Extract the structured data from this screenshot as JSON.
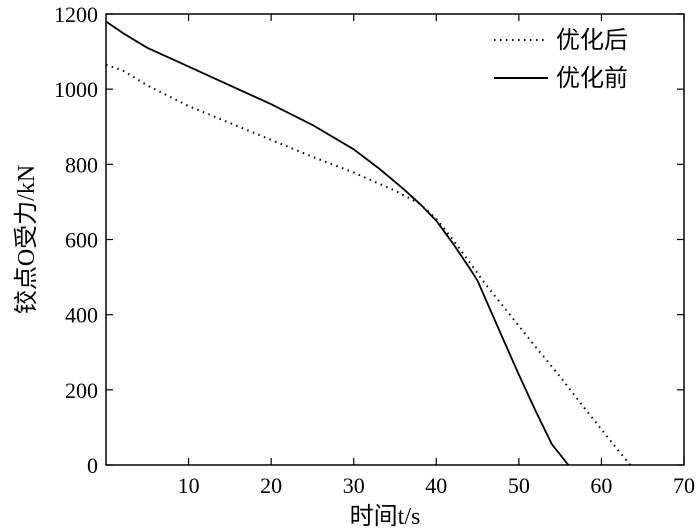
{
  "chart_data": {
    "type": "line",
    "title": "",
    "xlabel": "时间t/s",
    "ylabel": "铰点O受力/kN",
    "xlim": [
      0,
      70
    ],
    "ylim": [
      0,
      1200
    ],
    "xticks": [
      10,
      20,
      30,
      40,
      50,
      60,
      70
    ],
    "yticks": [
      0,
      200,
      400,
      600,
      800,
      1000,
      1200
    ],
    "grid": false,
    "legend_position": "top-right",
    "series": [
      {
        "name": "优化后",
        "style": "dotted",
        "color": "#000000",
        "x": [
          0,
          2,
          5,
          10,
          15,
          20,
          25,
          30,
          35,
          38,
          40,
          42,
          44,
          46,
          48,
          50,
          52,
          55,
          58,
          60,
          62,
          63.5
        ],
        "y": [
          1065,
          1050,
          1010,
          955,
          910,
          865,
          820,
          778,
          730,
          695,
          655,
          600,
          540,
          480,
          425,
          370,
          315,
          235,
          150,
          95,
          40,
          0
        ]
      },
      {
        "name": "优化前",
        "style": "solid",
        "color": "#000000",
        "x": [
          0,
          2,
          5,
          10,
          15,
          20,
          25,
          30,
          33,
          36,
          38,
          40,
          42,
          44,
          45,
          46,
          48,
          50,
          52,
          54,
          56
        ],
        "y": [
          1180,
          1150,
          1110,
          1060,
          1010,
          960,
          905,
          840,
          790,
          735,
          695,
          650,
          590,
          525,
          490,
          440,
          340,
          240,
          145,
          55,
          0
        ]
      }
    ]
  }
}
